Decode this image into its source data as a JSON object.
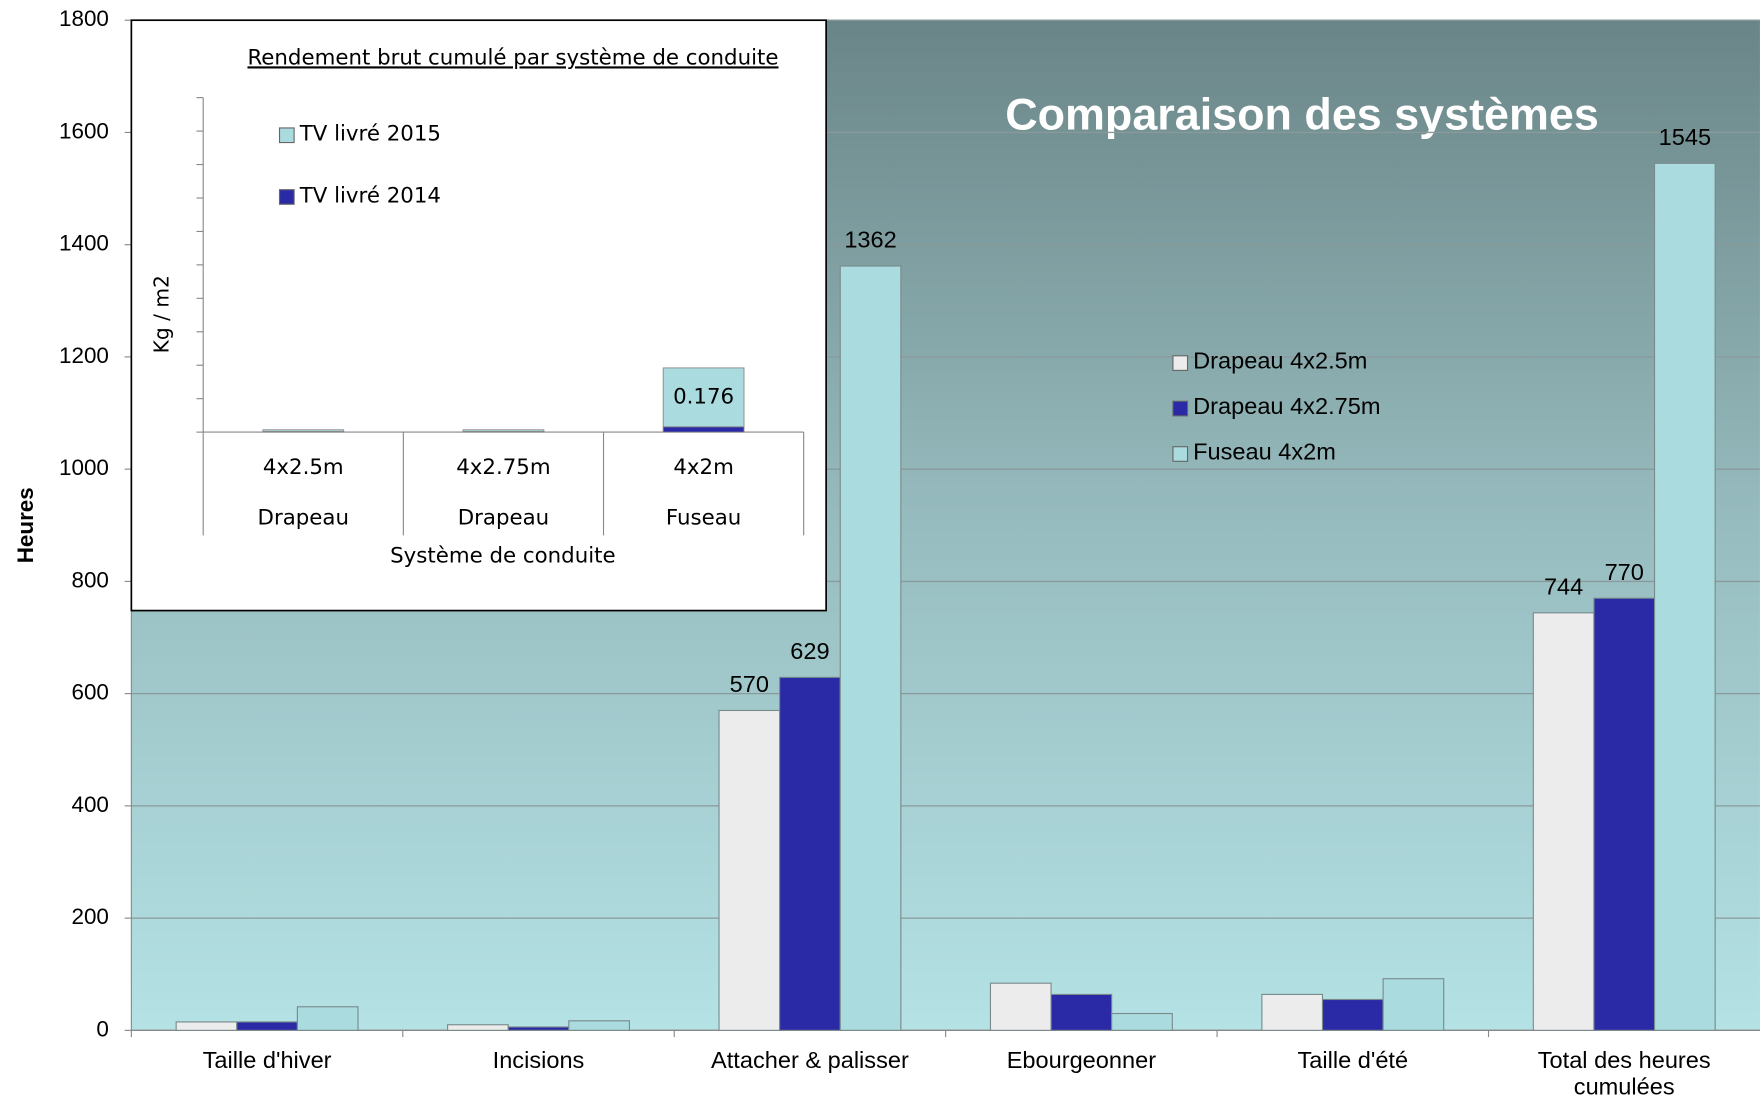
{
  "chart_data": [
    {
      "type": "bar",
      "title": "Comparaison des systèmes",
      "ylabel": "Heures",
      "categories": [
        "Taille d'hiver",
        "Incisions",
        "Attacher & palisser",
        "Ebourgeonner",
        "Taille d'été",
        "Total des heures cumulées"
      ],
      "series": [
        {
          "name": "Drapeau 4x2.5m",
          "color": "#ececec",
          "values": [
            15,
            10,
            570,
            84,
            64,
            744
          ],
          "value_labels": [
            null,
            null,
            "570",
            null,
            null,
            "744"
          ]
        },
        {
          "name": "Drapeau 4x2.75m",
          "color": "#2a2aa6",
          "values": [
            15,
            6,
            629,
            64,
            55,
            770
          ],
          "value_labels": [
            null,
            null,
            "629",
            null,
            null,
            "770"
          ]
        },
        {
          "name": "Fuseau 4x2m",
          "color": "#aadcdf",
          "values": [
            42,
            17,
            1362,
            30,
            92,
            1545
          ],
          "value_labels": [
            null,
            null,
            "1362",
            null,
            null,
            "1545"
          ]
        }
      ],
      "ylim": [
        0,
        1800
      ],
      "yticks": [
        0,
        200,
        400,
        600,
        800,
        1000,
        1200,
        1400,
        1600,
        1800
      ],
      "grid": true,
      "legend": "right"
    },
    {
      "type": "stacked-bar",
      "title": "Rendement brut cumulé par système de conduite",
      "ylabel": "Kg / m2",
      "xlabel": "Système de conduite",
      "categories": [
        [
          "4x2.5m",
          "Drapeau"
        ],
        [
          "4x2.75m",
          "Drapeau"
        ],
        [
          "4x2m",
          "Fuseau"
        ]
      ],
      "series": [
        {
          "name": "TV livré 2014",
          "color": "#2a2aa6",
          "values": [
            0.002,
            0.002,
            0.016
          ]
        },
        {
          "name": "TV livré 2015",
          "color": "#aadcdf",
          "values": [
            0.005,
            0.005,
            0.176
          ],
          "value_labels": [
            null,
            null,
            "0.176"
          ]
        }
      ],
      "ylim": [
        0,
        1
      ],
      "yticks": [
        0,
        0.1,
        0.2,
        0.3,
        0.4,
        0.5,
        0.6,
        0.7,
        0.8,
        0.9,
        1
      ],
      "legend": "top-left"
    }
  ]
}
